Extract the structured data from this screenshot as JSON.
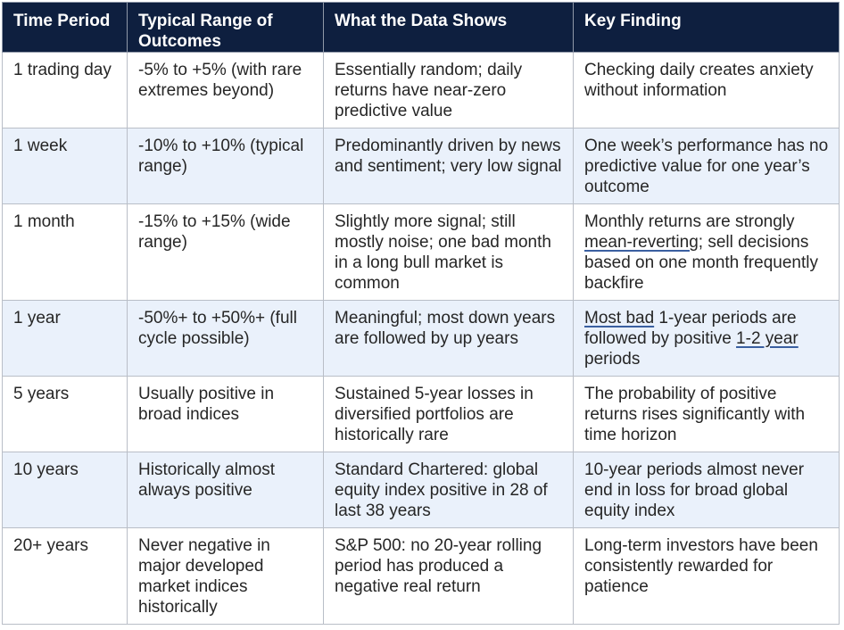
{
  "table": {
    "headers": [
      "Time Period",
      "Typical Range of Outcomes",
      "What the Data Shows",
      "Key Finding"
    ],
    "rows": [
      {
        "period": "1 trading day",
        "range": "-5% to +5% (with rare extremes beyond)",
        "data": "Essentially random; daily returns have near-zero predictive value",
        "finding": "Checking daily creates anxiety without information"
      },
      {
        "period": "1 week",
        "range": "-10% to +10% (typical range)",
        "data": "Predominantly driven by news and sentiment; very low signal",
        "finding": "One week’s performance has no predictive value for one year’s outcome"
      },
      {
        "period": "1 month",
        "range": "-15% to +15% (wide range)",
        "data": "Slightly more signal; still mostly noise; one bad month in a long bull market is common",
        "finding_parts": [
          "Monthly returns are strongly ",
          "mean-reverting",
          "; sell decisions based on one month frequently backfire"
        ]
      },
      {
        "period": "1 year",
        "range": "-50%+ to +50%+ (full cycle possible)",
        "data": "Meaningful; most down years are followed by up years",
        "finding_parts": [
          "Most bad",
          " 1-year periods are followed by positive ",
          "1-2 year",
          " periods"
        ]
      },
      {
        "period": "5 years",
        "range": "Usually positive in broad indices",
        "data": "Sustained 5-year losses in diversified portfolios are historically rare",
        "finding": "The probability of positive returns rises significantly with time horizon"
      },
      {
        "period": "10 years",
        "range": "Historically almost always positive",
        "data": "Standard Chartered: global equity index positive in 28 of last 38 years",
        "finding": "10-year periods almost never end in loss for broad global equity index"
      },
      {
        "period": "20+ years",
        "range": "Never negative in major developed market indices historically",
        "data": "S&P 500: no 20-year rolling period has produced a negative real return",
        "finding": "Long-term investors have been consistently rewarded for patience"
      }
    ]
  },
  "colors": {
    "header_bg": "#0e1f3f",
    "header_text": "#ffffff",
    "alt_row_bg": "#eaf1fb",
    "border": "#b9bec7",
    "underline": "#3a5fa0"
  }
}
